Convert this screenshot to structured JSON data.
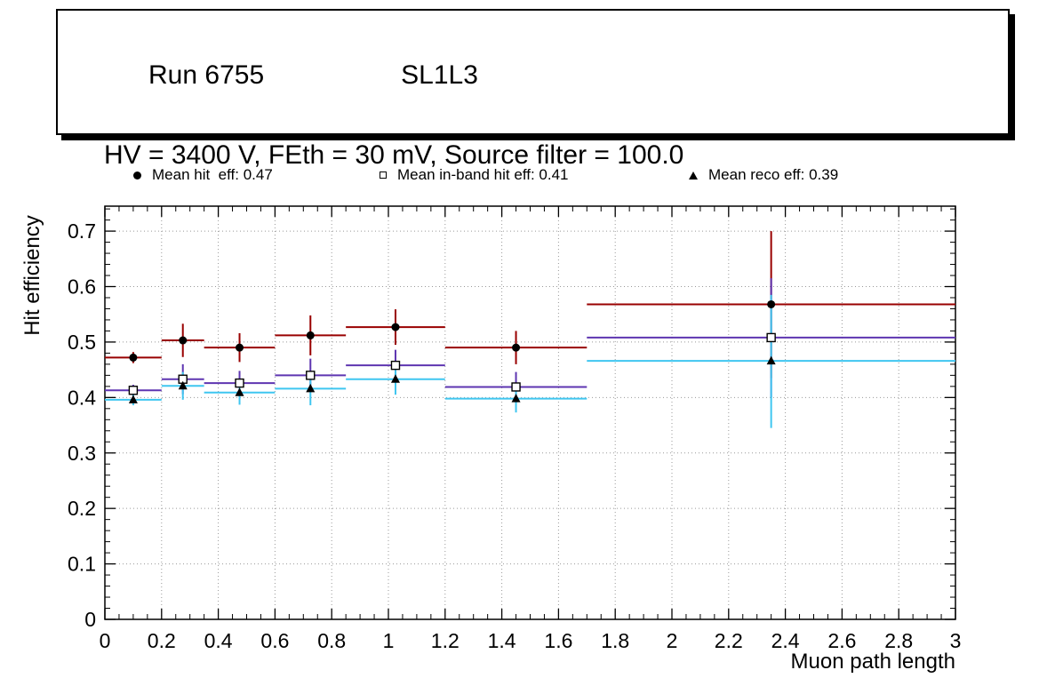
{
  "title_box": {
    "run": "Run 6755",
    "detector": "SL1L3",
    "conditions": "HV = 3400 V, FEth = 30 mV, Source filter = 100.0"
  },
  "legend": [
    {
      "marker": "filled-circle",
      "label": "Mean hit  eff: 0.47"
    },
    {
      "marker": "open-square",
      "label": "Mean in-band hit eff: 0.41"
    },
    {
      "marker": "filled-triangle",
      "label": "Mean reco eff: 0.39"
    }
  ],
  "chart_data": {
    "type": "scatter",
    "title": "",
    "xlabel": "Muon path length",
    "ylabel": "Hit efficiency",
    "xlim": [
      0,
      3
    ],
    "ylim": [
      0,
      0.745
    ],
    "x_ticks": [
      0,
      0.2,
      0.4,
      0.6,
      0.8,
      1,
      1.2,
      1.4,
      1.6,
      1.8,
      2,
      2.2,
      2.4,
      2.6,
      2.8,
      3
    ],
    "y_ticks": [
      0,
      0.1,
      0.2,
      0.3,
      0.4,
      0.5,
      0.6,
      0.7
    ],
    "x_minor_step": 0.05,
    "y_minor_step": 0.02,
    "grid": "dotted",
    "grid_color": "#999999",
    "legend_position": "top",
    "series": [
      {
        "name": "Mean hit  eff: 0.47",
        "mean": 0.47,
        "color": "#990000",
        "marker": "filled-circle",
        "points": [
          {
            "x": 0.1,
            "y": 0.472,
            "xlo": 0.0,
            "xhi": 0.2,
            "ylo": 0.462,
            "yhi": 0.482
          },
          {
            "x": 0.275,
            "y": 0.503,
            "xlo": 0.2,
            "xhi": 0.35,
            "ylo": 0.473,
            "yhi": 0.533
          },
          {
            "x": 0.475,
            "y": 0.49,
            "xlo": 0.35,
            "xhi": 0.6,
            "ylo": 0.464,
            "yhi": 0.516
          },
          {
            "x": 0.725,
            "y": 0.512,
            "xlo": 0.6,
            "xhi": 0.85,
            "ylo": 0.476,
            "yhi": 0.548
          },
          {
            "x": 1.025,
            "y": 0.527,
            "xlo": 0.85,
            "xhi": 1.2,
            "ylo": 0.495,
            "yhi": 0.559
          },
          {
            "x": 1.45,
            "y": 0.49,
            "xlo": 1.2,
            "xhi": 1.7,
            "ylo": 0.46,
            "yhi": 0.52
          },
          {
            "x": 2.35,
            "y": 0.568,
            "xlo": 1.7,
            "xhi": 3.0,
            "ylo": 0.435,
            "yhi": 0.7
          }
        ]
      },
      {
        "name": "Mean in-band hit eff: 0.41",
        "mean": 0.41,
        "color": "#5e35b1",
        "marker": "open-square",
        "points": [
          {
            "x": 0.1,
            "y": 0.413,
            "xlo": 0.0,
            "xhi": 0.2,
            "ylo": 0.403,
            "yhi": 0.423
          },
          {
            "x": 0.275,
            "y": 0.433,
            "xlo": 0.2,
            "xhi": 0.35,
            "ylo": 0.406,
            "yhi": 0.46
          },
          {
            "x": 0.475,
            "y": 0.426,
            "xlo": 0.35,
            "xhi": 0.6,
            "ylo": 0.404,
            "yhi": 0.448
          },
          {
            "x": 0.725,
            "y": 0.44,
            "xlo": 0.6,
            "xhi": 0.85,
            "ylo": 0.41,
            "yhi": 0.47
          },
          {
            "x": 1.025,
            "y": 0.458,
            "xlo": 0.85,
            "xhi": 1.2,
            "ylo": 0.43,
            "yhi": 0.486
          },
          {
            "x": 1.45,
            "y": 0.419,
            "xlo": 1.2,
            "xhi": 1.7,
            "ylo": 0.392,
            "yhi": 0.446
          },
          {
            "x": 2.35,
            "y": 0.508,
            "xlo": 1.7,
            "xhi": 3.0,
            "ylo": 0.4,
            "yhi": 0.615
          }
        ]
      },
      {
        "name": "Mean reco eff: 0.39",
        "mean": 0.39,
        "color": "#3fc6f0",
        "marker": "filled-triangle",
        "points": [
          {
            "x": 0.1,
            "y": 0.396,
            "xlo": 0.0,
            "xhi": 0.2,
            "ylo": 0.386,
            "yhi": 0.406
          },
          {
            "x": 0.275,
            "y": 0.421,
            "xlo": 0.2,
            "xhi": 0.35,
            "ylo": 0.396,
            "yhi": 0.446
          },
          {
            "x": 0.475,
            "y": 0.409,
            "xlo": 0.35,
            "xhi": 0.6,
            "ylo": 0.387,
            "yhi": 0.431
          },
          {
            "x": 0.725,
            "y": 0.416,
            "xlo": 0.6,
            "xhi": 0.85,
            "ylo": 0.386,
            "yhi": 0.446
          },
          {
            "x": 1.025,
            "y": 0.433,
            "xlo": 0.85,
            "xhi": 1.2,
            "ylo": 0.405,
            "yhi": 0.461
          },
          {
            "x": 1.45,
            "y": 0.398,
            "xlo": 1.2,
            "xhi": 1.7,
            "ylo": 0.373,
            "yhi": 0.423
          },
          {
            "x": 2.35,
            "y": 0.466,
            "xlo": 1.7,
            "xhi": 3.0,
            "ylo": 0.345,
            "yhi": 0.585
          }
        ]
      }
    ]
  }
}
